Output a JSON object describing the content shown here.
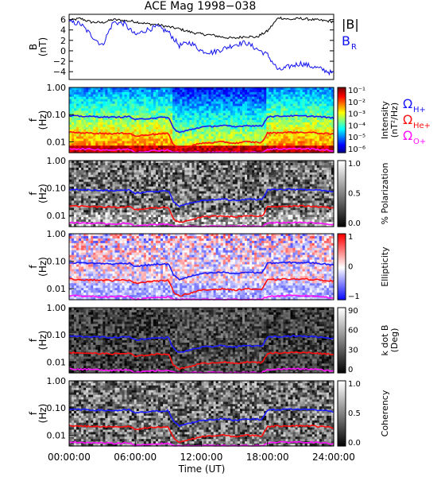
{
  "title": "ACE Mag 1998−038",
  "x_axis": {
    "label": "Time (UT)",
    "ticks": [
      "00:00:00",
      "06:00:00",
      "12:00:00",
      "18:00:00",
      "24:00:00"
    ],
    "range_hours": [
      0,
      24
    ]
  },
  "freq_axis": {
    "ylabel_f": "f",
    "ylabel_unit": "(Hz)",
    "ticks": [
      "1.00",
      "0.10",
      "0.01"
    ],
    "range_hz": [
      0.004,
      1.0
    ],
    "scale": "log"
  },
  "legend": {
    "btot": "|B|",
    "br": "B",
    "br_sub": "R",
    "omega_h": "Ω",
    "omega_h_sub": "H+",
    "omega_he": "Ω",
    "omega_he_sub": "He+",
    "omega_o": "Ω",
    "omega_o_sub": "O+"
  },
  "colors": {
    "btot": "#000000",
    "br": "#1010ee",
    "omega_h": "#1a1aff",
    "omega_he": "#ff1010",
    "omega_o": "#ff10ff"
  },
  "colorbars": {
    "intensity": {
      "label": "Intensity",
      "unit": "(nT²/Hz)",
      "ticks": [
        "10⁻¹",
        "10⁻²",
        "10⁻³",
        "10⁻⁴",
        "10⁻⁵",
        "10⁻⁶"
      ]
    },
    "polarization": {
      "label": "% Polarization",
      "ticks": [
        "1.0",
        "0.5",
        "0.0"
      ]
    },
    "ellipticity": {
      "label": "Ellipticity",
      "ticks": [
        "1",
        "0",
        "−1"
      ]
    },
    "kdotb": {
      "label": "k dot B",
      "unit": "(Deg)",
      "ticks": [
        "90",
        "60",
        "30",
        "0"
      ]
    },
    "coherency": {
      "label": "Coherency",
      "ticks": [
        "1.0",
        "0.5",
        "0.0"
      ]
    }
  },
  "chart_data": [
    {
      "type": "line",
      "title": "ACE Mag 1998−038",
      "ylabel": "B",
      "yunit": "(nT)",
      "ylim": [
        -5.5,
        7
      ],
      "yticks": [
        6,
        4,
        2,
        0,
        -2,
        -4
      ],
      "x_hours": [
        0,
        1,
        2,
        3,
        4,
        5,
        6,
        7,
        8,
        9,
        10,
        11,
        12,
        13,
        14,
        15,
        16,
        17,
        18,
        19,
        20,
        21,
        22,
        23,
        24
      ],
      "series": [
        {
          "name": "|B|",
          "values": [
            5.8,
            6.2,
            5.5,
            5.4,
            6.0,
            5.8,
            5.6,
            5.2,
            5.0,
            4.6,
            4.2,
            3.6,
            3.2,
            3.0,
            2.6,
            2.4,
            2.8,
            2.6,
            3.8,
            6.4,
            6.0,
            6.2,
            6.0,
            5.8,
            5.6
          ]
        },
        {
          "name": "B_R",
          "values": [
            5.5,
            5.2,
            3.0,
            1.0,
            5.5,
            5.2,
            3.0,
            4.0,
            4.6,
            3.6,
            1.0,
            1.6,
            0.0,
            -0.3,
            0.4,
            1.2,
            1.6,
            0.4,
            -0.8,
            -3.8,
            -3.0,
            -2.4,
            -3.0,
            -3.6,
            -4.4
          ]
        }
      ]
    },
    {
      "type": "heatmap",
      "name": "Intensity (nT²/Hz)",
      "y": "f (Hz), log scale",
      "colorbar_range": [
        "10⁻⁶",
        "10⁻¹"
      ],
      "overlays": [
        {
          "name": "ΩH+",
          "x_hours": [
            0,
            2,
            4,
            5.5,
            6,
            7.5,
            9,
            9.5,
            10,
            11,
            12,
            14,
            15,
            16,
            17.5,
            18,
            20,
            22,
            24
          ],
          "values_hz": [
            0.09,
            0.085,
            0.08,
            0.085,
            0.065,
            0.075,
            0.08,
            0.03,
            0.022,
            0.028,
            0.035,
            0.04,
            0.035,
            0.04,
            0.038,
            0.085,
            0.09,
            0.088,
            0.075
          ]
        },
        {
          "name": "ΩHe+",
          "x_hours": [
            0,
            2,
            4,
            5.5,
            6,
            7.5,
            9,
            9.5,
            10,
            11,
            12,
            14,
            15,
            16,
            17.5,
            18,
            20,
            22,
            24
          ],
          "values_hz": [
            0.0225,
            0.021,
            0.02,
            0.021,
            0.016,
            0.019,
            0.02,
            0.0075,
            0.0055,
            0.007,
            0.0088,
            0.01,
            0.0088,
            0.01,
            0.0095,
            0.021,
            0.0225,
            0.022,
            0.019
          ]
        },
        {
          "name": "ΩO+",
          "x_hours": [
            0,
            2,
            4,
            5.5,
            6,
            7.5,
            9,
            9.5,
            10,
            11,
            12,
            14,
            15,
            16,
            17.5,
            18,
            20,
            22,
            24
          ],
          "values_hz": [
            0.0056,
            0.0053,
            0.005,
            0.0053,
            0.0041,
            0.0047,
            0.005,
            0.0041,
            0.0041,
            0.0041,
            0.0041,
            0.0041,
            0.0041,
            0.0041,
            0.0041,
            0.0053,
            0.0056,
            0.0055,
            0.0047
          ]
        }
      ]
    },
    {
      "type": "heatmap",
      "name": "% Polarization",
      "colorbar_range": [
        0.0,
        1.0
      ]
    },
    {
      "type": "heatmap",
      "name": "Ellipticity",
      "colorbar_range": [
        -1,
        1
      ]
    },
    {
      "type": "heatmap",
      "name": "k dot B (Deg)",
      "colorbar_range": [
        0,
        90
      ]
    },
    {
      "type": "heatmap",
      "name": "Coherency",
      "colorbar_range": [
        0.0,
        1.0
      ]
    }
  ]
}
